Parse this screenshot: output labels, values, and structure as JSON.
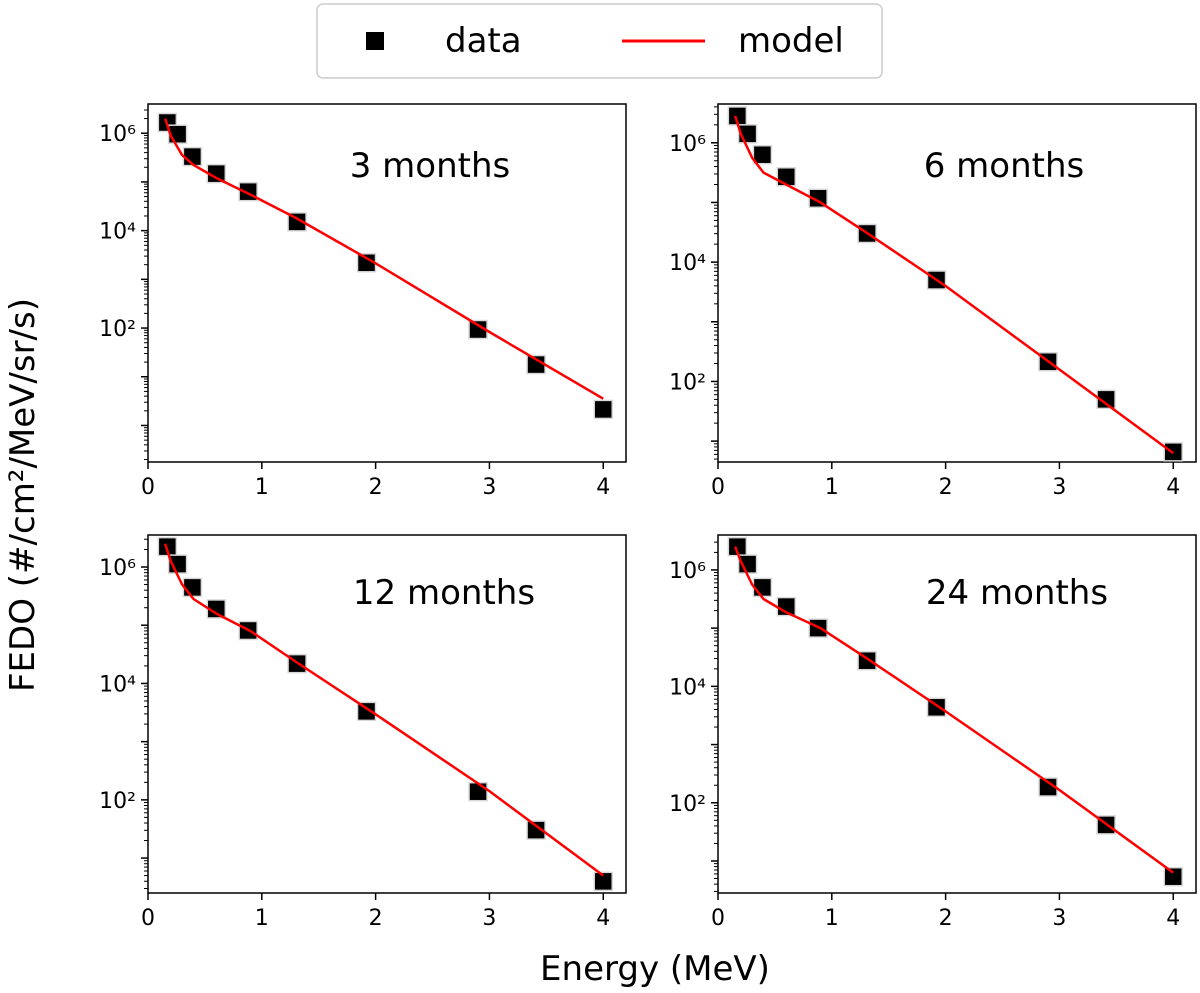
{
  "legend": {
    "placement": "top-center",
    "items": [
      {
        "label": "data",
        "marker": "square",
        "color": "#000000"
      },
      {
        "label": "model",
        "marker": "line",
        "color": "#ff0000"
      }
    ]
  },
  "colors": {
    "data": "#000000",
    "model": "#ff0000",
    "marker_edge": "#d9d9d9"
  },
  "shared_xlabel": "Energy (MeV)",
  "shared_ylabel": "FEDO (#/cm²/MeV/sr/s)",
  "chart_data": [
    {
      "type": "scatter+line",
      "title": "3 months",
      "xscale": "linear",
      "yscale": "log",
      "xlim": [
        0,
        4.2
      ],
      "ylim_log10": [
        -0.75,
        6.6
      ],
      "xticks": [
        0,
        1,
        2,
        3,
        4
      ],
      "yticks_exp": [
        2,
        4,
        6
      ],
      "series": [
        {
          "name": "data",
          "x": [
            0.17,
            0.26,
            0.39,
            0.6,
            0.88,
            1.31,
            1.92,
            2.9,
            3.41,
            4.0
          ],
          "y_log10": [
            6.22,
            5.98,
            5.52,
            5.17,
            4.8,
            4.18,
            3.34,
            1.97,
            1.25,
            0.33
          ]
        },
        {
          "name": "model",
          "x": [
            0.15,
            0.2,
            0.3,
            0.4,
            0.6,
            0.9,
            1.3,
            2.0,
            3.0,
            4.0
          ],
          "y_log10": [
            6.3,
            5.95,
            5.55,
            5.35,
            5.08,
            4.74,
            4.26,
            3.33,
            1.92,
            0.55
          ]
        }
      ]
    },
    {
      "type": "scatter+line",
      "title": "6 months",
      "xscale": "linear",
      "yscale": "log",
      "xlim": [
        0,
        4.2
      ],
      "ylim_log10": [
        0.65,
        6.65
      ],
      "xticks": [
        0,
        1,
        2,
        3,
        4
      ],
      "yticks_exp": [
        2,
        4,
        6
      ],
      "series": [
        {
          "name": "data",
          "x": [
            0.17,
            0.26,
            0.39,
            0.6,
            0.88,
            1.31,
            1.92,
            2.9,
            3.41,
            4.0
          ],
          "y_log10": [
            6.45,
            6.15,
            5.8,
            5.43,
            5.07,
            4.48,
            3.7,
            2.33,
            1.7,
            0.82
          ]
        },
        {
          "name": "model",
          "x": [
            0.15,
            0.2,
            0.3,
            0.4,
            0.6,
            0.9,
            1.3,
            2.0,
            3.0,
            4.0
          ],
          "y_log10": [
            6.45,
            6.15,
            5.75,
            5.5,
            5.3,
            5.0,
            4.5,
            3.6,
            2.2,
            0.8
          ]
        }
      ]
    },
    {
      "type": "scatter+line",
      "title": "12 months",
      "xscale": "linear",
      "yscale": "log",
      "xlim": [
        0,
        4.2
      ],
      "ylim_log10": [
        0.4,
        6.55
      ],
      "xticks": [
        0,
        1,
        2,
        3,
        4
      ],
      "yticks_exp": [
        2,
        4,
        6
      ],
      "series": [
        {
          "name": "data",
          "x": [
            0.17,
            0.26,
            0.39,
            0.6,
            0.88,
            1.31,
            1.92,
            2.9,
            3.41,
            4.0
          ],
          "y_log10": [
            6.35,
            6.05,
            5.65,
            5.28,
            4.91,
            4.34,
            3.52,
            2.14,
            1.48,
            0.6
          ]
        },
        {
          "name": "model",
          "x": [
            0.15,
            0.2,
            0.3,
            0.4,
            0.6,
            0.9,
            1.3,
            2.0,
            3.0,
            4.0
          ],
          "y_log10": [
            6.4,
            6.1,
            5.7,
            5.45,
            5.2,
            4.9,
            4.37,
            3.47,
            2.15,
            0.7
          ]
        }
      ]
    },
    {
      "type": "scatter+line",
      "title": "24 months",
      "xscale": "linear",
      "yscale": "log",
      "xlim": [
        0,
        4.2
      ],
      "ylim_log10": [
        0.45,
        6.6
      ],
      "xticks": [
        0,
        1,
        2,
        3,
        4
      ],
      "yticks_exp": [
        2,
        4,
        6
      ],
      "series": [
        {
          "name": "data",
          "x": [
            0.17,
            0.26,
            0.39,
            0.6,
            0.88,
            1.31,
            1.92,
            2.9,
            3.41,
            4.0
          ],
          "y_log10": [
            6.4,
            6.1,
            5.7,
            5.37,
            5.0,
            4.44,
            3.64,
            2.27,
            1.62,
            0.73
          ]
        },
        {
          "name": "model",
          "x": [
            0.15,
            0.2,
            0.3,
            0.4,
            0.6,
            0.9,
            1.3,
            2.0,
            3.0,
            4.0
          ],
          "y_log10": [
            6.4,
            6.15,
            5.75,
            5.5,
            5.27,
            5.0,
            4.49,
            3.57,
            2.22,
            0.8
          ]
        }
      ]
    }
  ]
}
